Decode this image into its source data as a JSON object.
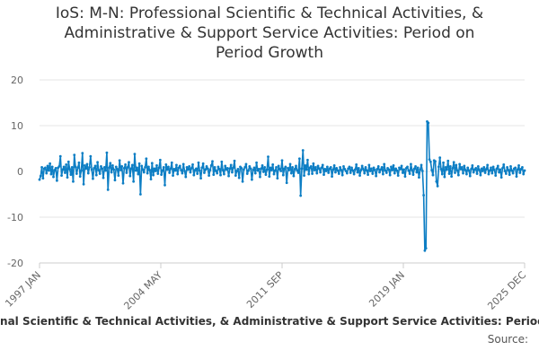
{
  "title_lines": [
    "IoS: M-N: Professional Scientific & Technical Activities, &",
    "Administrative & Support Service Activities: Period on",
    "Period Growth"
  ],
  "legend_text": "IoS: M-N: Professional Scientific & Technical Activities, & Administrative & Support Service Activities: Period on Period Growth",
  "source_label": "Source:",
  "chart_data": {
    "type": "line",
    "title": "IoS: M-N: Professional Scientific & Technical Activities, & Administrative & Support Service Activities: Period on Period Growth",
    "xlabel": "",
    "ylabel": "",
    "ylim": [
      -20,
      20
    ],
    "yticks": [
      20,
      10,
      0,
      -10,
      -20
    ],
    "xlim": [
      "1997 JAN",
      "2025 DEC"
    ],
    "xticks": [
      "1997 JAN",
      "2004 MAY",
      "2011 SEP",
      "2019 JAN",
      "2025 DEC"
    ],
    "grid": true,
    "colors": {
      "series": "#0d7ec4",
      "grid": "#e6e6e6",
      "axis": "#cccccc"
    },
    "series": [
      {
        "name": "Period on Period Growth",
        "note": "monthly values 1997 JAN to 2025 DEC, read approximately from the plot",
        "values": [
          -1.8,
          -1.0,
          0.9,
          -1.5,
          0.6,
          0.8,
          -0.4,
          1.2,
          0.2,
          1.7,
          -0.6,
          1.0,
          -1.2,
          0.3,
          0.7,
          -2.0,
          0.8,
          1.1,
          3.3,
          -0.9,
          0.4,
          1.0,
          -0.3,
          1.5,
          -1.3,
          2.1,
          0.5,
          -0.7,
          0.9,
          -2.2,
          3.6,
          1.0,
          -0.5,
          0.8,
          1.9,
          -1.1,
          0.2,
          4.0,
          -2.8,
          1.3,
          0.6,
          1.6,
          -0.4,
          0.9,
          3.3,
          0.4,
          -1.6,
          0.7,
          1.2,
          -0.8,
          2.0,
          0.3,
          -0.5,
          1.1,
          0.6,
          -1.4,
          0.9,
          0.2,
          4.1,
          -4.0,
          0.8,
          1.8,
          -0.2,
          1.3,
          0.4,
          -1.9,
          1.0,
          0.5,
          -0.9,
          2.4,
          0.3,
          1.1,
          -2.6,
          0.7,
          1.5,
          -0.3,
          0.9,
          2.0,
          -1.0,
          0.6,
          1.4,
          -2.2,
          3.8,
          0.2,
          0.8,
          -0.6,
          1.7,
          -5.0,
          1.2,
          0.4,
          -0.2,
          0.9,
          2.8,
          -0.4,
          1.0,
          0.3,
          -1.7,
          1.8,
          -0.8,
          0.6,
          0.1,
          1.3,
          -0.5,
          0.8,
          2.5,
          -0.7,
          0.2,
          0.9,
          -3.0,
          1.5,
          0.4,
          1.0,
          -0.3,
          0.6,
          1.9,
          -0.9,
          0.5,
          0.2,
          1.4,
          -0.6,
          0.8,
          1.2,
          0.3,
          -0.4,
          1.6,
          0.1,
          -1.2,
          0.9,
          0.4,
          1.1,
          -0.2,
          0.7,
          1.5,
          -0.8,
          0.3,
          0.6,
          -0.5,
          1.9,
          0.2,
          -1.5,
          0.8,
          1.7,
          -0.3,
          0.4,
          1.1,
          0.6,
          -0.9,
          0.3,
          1.3,
          2.2,
          -0.7,
          0.9,
          0.1,
          -0.4,
          1.0,
          0.5,
          -0.8,
          2.1,
          0.3,
          -0.6,
          1.2,
          0.4,
          0.7,
          -1.0,
          0.6,
          1.4,
          -0.2,
          0.8,
          2.3,
          -0.9,
          0.1,
          0.5,
          -1.4,
          1.0,
          0.7,
          -2.2,
          0.4,
          0.9,
          1.6,
          -0.5,
          0.2,
          1.1,
          0.6,
          -1.8,
          0.3,
          0.8,
          -0.4,
          1.9,
          0.2,
          0.5,
          -1.2,
          0.6,
          1.3,
          -0.1,
          0.9,
          -0.7,
          0.4,
          3.2,
          -1.1,
          0.8,
          0.3,
          1.5,
          -0.6,
          0.2,
          0.9,
          -1.5,
          1.2,
          0.5,
          0.1,
          2.4,
          -0.8,
          0.6,
          1.0,
          -2.5,
          0.7,
          0.3,
          1.6,
          -0.4,
          0.9,
          -1.0,
          0.5,
          1.2,
          0.2,
          -0.3,
          2.8,
          -5.3,
          0.6,
          4.6,
          -0.9,
          1.3,
          0.4,
          2.5,
          -0.6,
          0.8,
          1.1,
          -0.5,
          1.7,
          0.3,
          0.9,
          -0.4,
          1.2,
          0.6,
          -0.2,
          0.8,
          1.4,
          -0.7,
          0.5,
          0.1,
          1.0,
          -0.3,
          0.6,
          0.9,
          -1.1,
          0.4,
          1.3,
          -0.2,
          0.7,
          0.2,
          -0.5,
          0.9,
          0.3,
          -0.8,
          1.1,
          0.5,
          0.1,
          -0.4,
          0.6,
          1.0,
          -0.3,
          0.8,
          0.2,
          -0.6,
          0.4,
          1.5,
          -0.2,
          0.7,
          -0.9,
          0.3,
          1.2,
          0.5,
          -0.4,
          0.9,
          0.2,
          -0.7,
          1.4,
          0.1,
          0.6,
          -0.5,
          0.8,
          0.3,
          -1.0,
          0.5,
          1.1,
          -0.2,
          0.4,
          0.9,
          -0.6,
          1.6,
          0.2,
          -0.3,
          0.7,
          0.4,
          -0.8,
          1.0,
          0.3,
          1.3,
          -0.4,
          0.6,
          0.2,
          -0.9,
          0.8,
          0.5,
          1.2,
          -0.3,
          0.4,
          -1.1,
          0.7,
          1.0,
          0.2,
          -0.5,
          1.6,
          0.3,
          -0.7,
          0.6,
          1.1,
          -0.2,
          0.8,
          -1.3,
          0.4,
          1.4,
          0.1,
          -5.2,
          -17.3,
          -16.8,
          10.9,
          10.6,
          2.6,
          2.1,
          0.3,
          -0.8,
          2.4,
          2.2,
          -2.2,
          -3.2,
          1.0,
          3.0,
          0.5,
          -0.6,
          1.9,
          -1.2,
          0.9,
          0.4,
          2.3,
          -0.5,
          1.1,
          -1.1,
          0.7,
          2.0,
          -0.3,
          1.4,
          0.2,
          -0.8,
          1.6,
          0.5,
          0.9,
          -0.4,
          1.2,
          0.3,
          -0.6,
          0.8,
          0.2,
          -1.0,
          0.5,
          1.3,
          -0.2,
          0.4,
          0.7,
          -0.5,
          1.1,
          0.3,
          -0.8,
          0.6,
          0.1,
          0.9,
          -0.3,
          0.5,
          1.4,
          -0.6,
          0.2,
          0.8,
          -0.4,
          1.0,
          0.3,
          -0.9,
          0.6,
          1.2,
          -0.2,
          0.4,
          -1.3,
          0.7,
          1.5,
          0.1,
          -0.5,
          0.9,
          0.3,
          -0.7,
          1.1,
          0.2,
          -0.4,
          0.6,
          0.8,
          -1.1,
          0.4,
          1.3,
          -0.3,
          0.5,
          0.9,
          -0.6,
          0.2
        ]
      }
    ]
  }
}
